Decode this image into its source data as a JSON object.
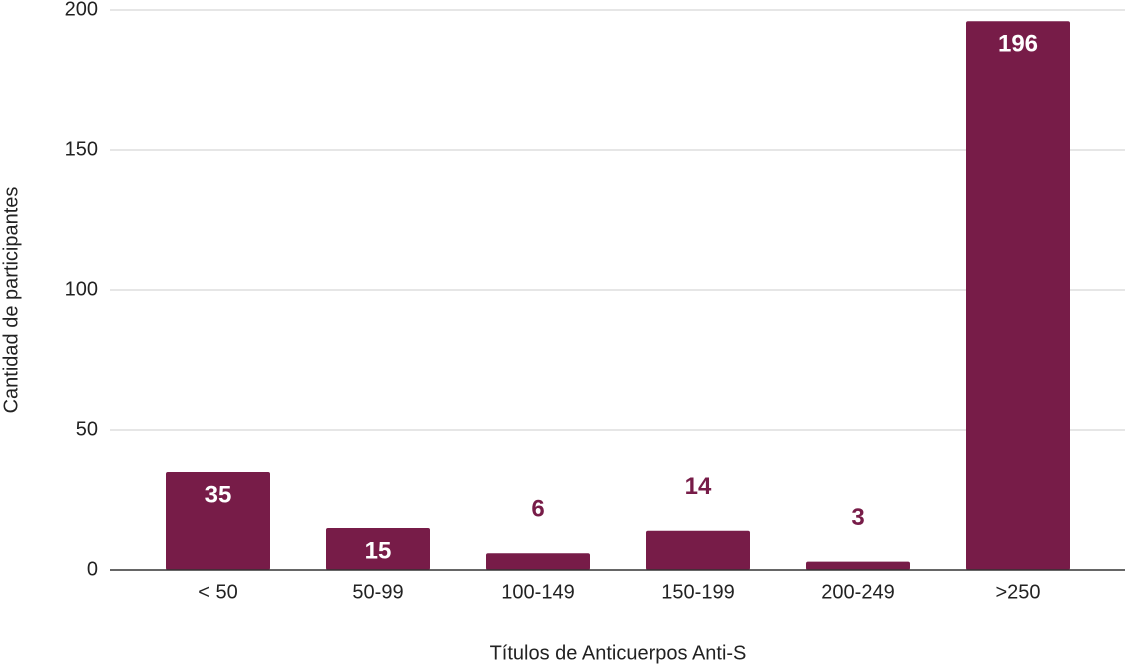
{
  "chart_data": {
    "type": "bar",
    "categories": [
      "< 50",
      "50-99",
      "100-149",
      "150-199",
      "200-249",
      ">250"
    ],
    "values": [
      35,
      15,
      6,
      14,
      3,
      196
    ],
    "color": "#771c48",
    "xlabel": "Títulos de Anticuerpos Anti-S",
    "ylabel": "Cantidad de participantes",
    "ylim": [
      0,
      200
    ],
    "yticks": [
      0,
      50,
      100,
      150,
      200
    ],
    "grid": true
  }
}
